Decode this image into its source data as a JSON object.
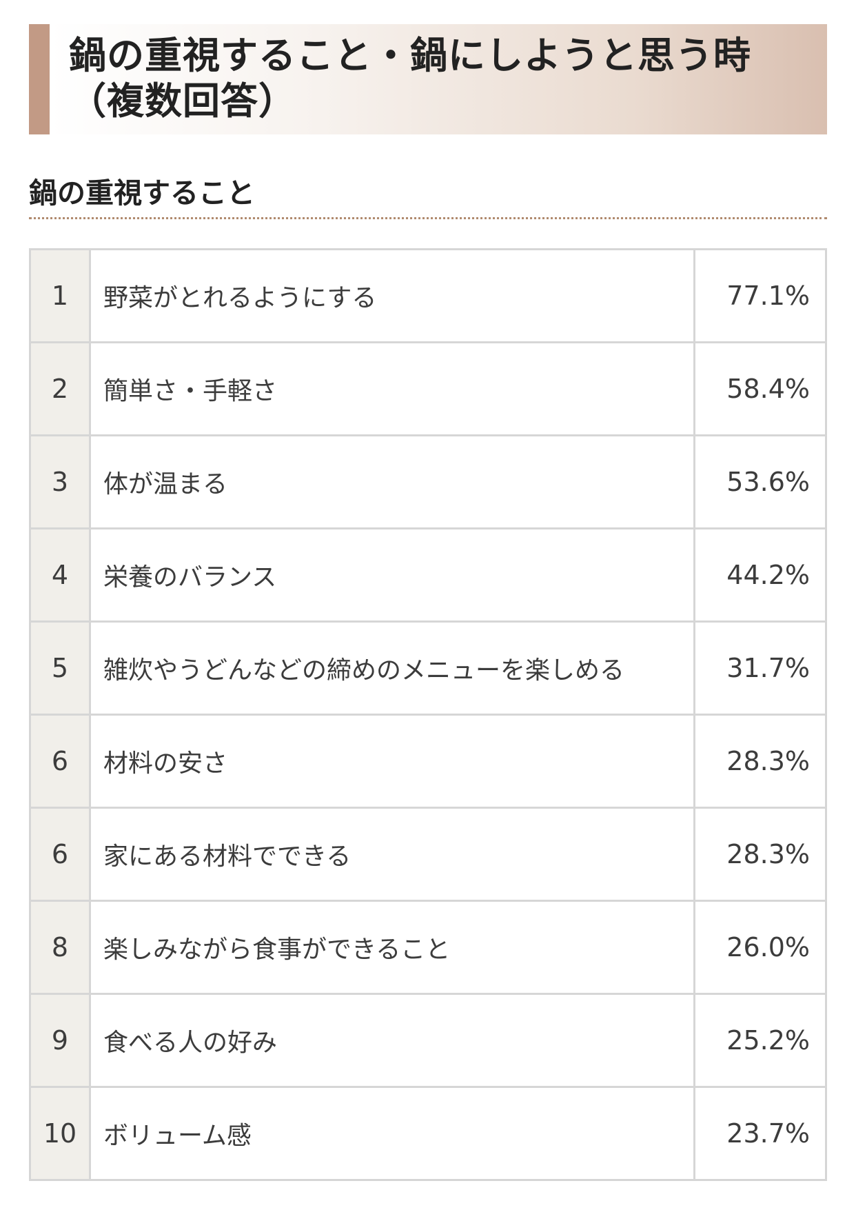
{
  "header": {
    "title_line1": "鍋の重視すること・鍋にしようと思う時",
    "title_line2": "（複数回答）"
  },
  "section": {
    "title": "鍋の重視すること"
  },
  "rows": [
    {
      "rank": "1",
      "label": "野菜がとれるようにする",
      "value": "77.1%"
    },
    {
      "rank": "2",
      "label": "簡単さ・手軽さ",
      "value": "58.4%"
    },
    {
      "rank": "3",
      "label": "体が温まる",
      "value": "53.6%"
    },
    {
      "rank": "4",
      "label": "栄養のバランス",
      "value": "44.2%"
    },
    {
      "rank": "5",
      "label": "雑炊やうどんなどの締めのメニューを楽しめる",
      "value": "31.7%"
    },
    {
      "rank": "6",
      "label": "材料の安さ",
      "value": "28.3%"
    },
    {
      "rank": "6",
      "label": "家にある材料でできる",
      "value": "28.3%"
    },
    {
      "rank": "8",
      "label": "楽しみながら食事ができること",
      "value": "26.0%"
    },
    {
      "rank": "9",
      "label": "食べる人の好み",
      "value": "25.2%"
    },
    {
      "rank": "10",
      "label": "ボリューム感",
      "value": "23.7%"
    }
  ]
}
